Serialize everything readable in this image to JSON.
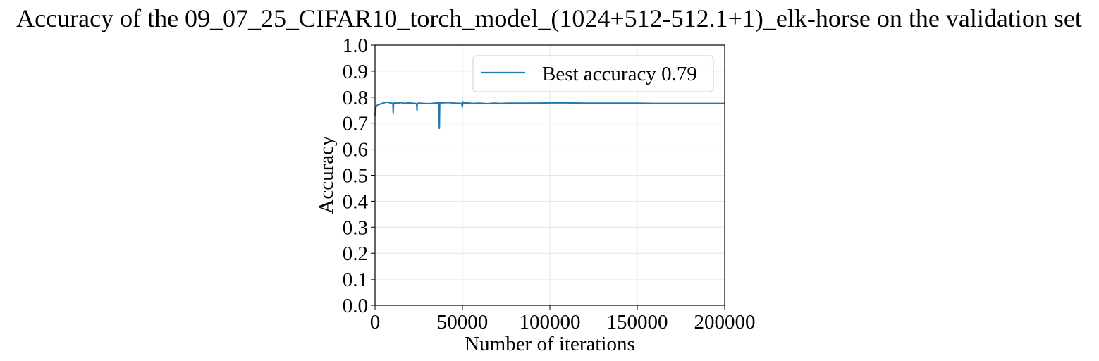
{
  "chart_data": {
    "type": "line",
    "title": "Accuracy of the 09_07_25_CIFAR10_torch_model_(1024+512-512.1+1)_elk-horse on the validation set",
    "xlabel": "Number of iterations",
    "ylabel": "Accuracy",
    "xlim": [
      0,
      200000
    ],
    "ylim": [
      0.0,
      1.0
    ],
    "grid": true,
    "legend_position": "upper-right",
    "x_ticks": [
      "0",
      "50000",
      "100000",
      "150000",
      "200000"
    ],
    "y_ticks": [
      "0.0",
      "0.1",
      "0.2",
      "0.3",
      "0.4",
      "0.5",
      "0.6",
      "0.7",
      "0.8",
      "0.9",
      "1.0"
    ],
    "series": [
      {
        "name": "Best accuracy 0.79",
        "color": "#1f77b4",
        "x": [
          0,
          300,
          800,
          1500,
          2500,
          3500,
          5000,
          6500,
          8000,
          9500,
          10200,
          10400,
          10600,
          11000,
          13000,
          15000,
          17000,
          19000,
          21000,
          23000,
          23800,
          24000,
          24200,
          25000,
          28000,
          31000,
          34000,
          36500,
          36800,
          37000,
          37200,
          38000,
          42000,
          46000,
          49500,
          50000,
          50200,
          50500,
          52000,
          56000,
          60000,
          64000,
          68000,
          72000,
          76000,
          80000,
          90000,
          100000,
          110000,
          120000,
          130000,
          140000,
          150000,
          160000,
          170000,
          180000,
          190000,
          200000
        ],
        "y": [
          0.73,
          0.755,
          0.765,
          0.77,
          0.772,
          0.775,
          0.778,
          0.781,
          0.779,
          0.777,
          0.776,
          0.74,
          0.776,
          0.778,
          0.777,
          0.779,
          0.776,
          0.778,
          0.777,
          0.776,
          0.774,
          0.748,
          0.776,
          0.777,
          0.776,
          0.775,
          0.777,
          0.778,
          0.68,
          0.778,
          0.777,
          0.778,
          0.779,
          0.777,
          0.776,
          0.762,
          0.783,
          0.777,
          0.778,
          0.776,
          0.777,
          0.775,
          0.777,
          0.776,
          0.777,
          0.777,
          0.777,
          0.778,
          0.778,
          0.777,
          0.777,
          0.777,
          0.777,
          0.776,
          0.776,
          0.776,
          0.776,
          0.776
        ]
      }
    ]
  }
}
